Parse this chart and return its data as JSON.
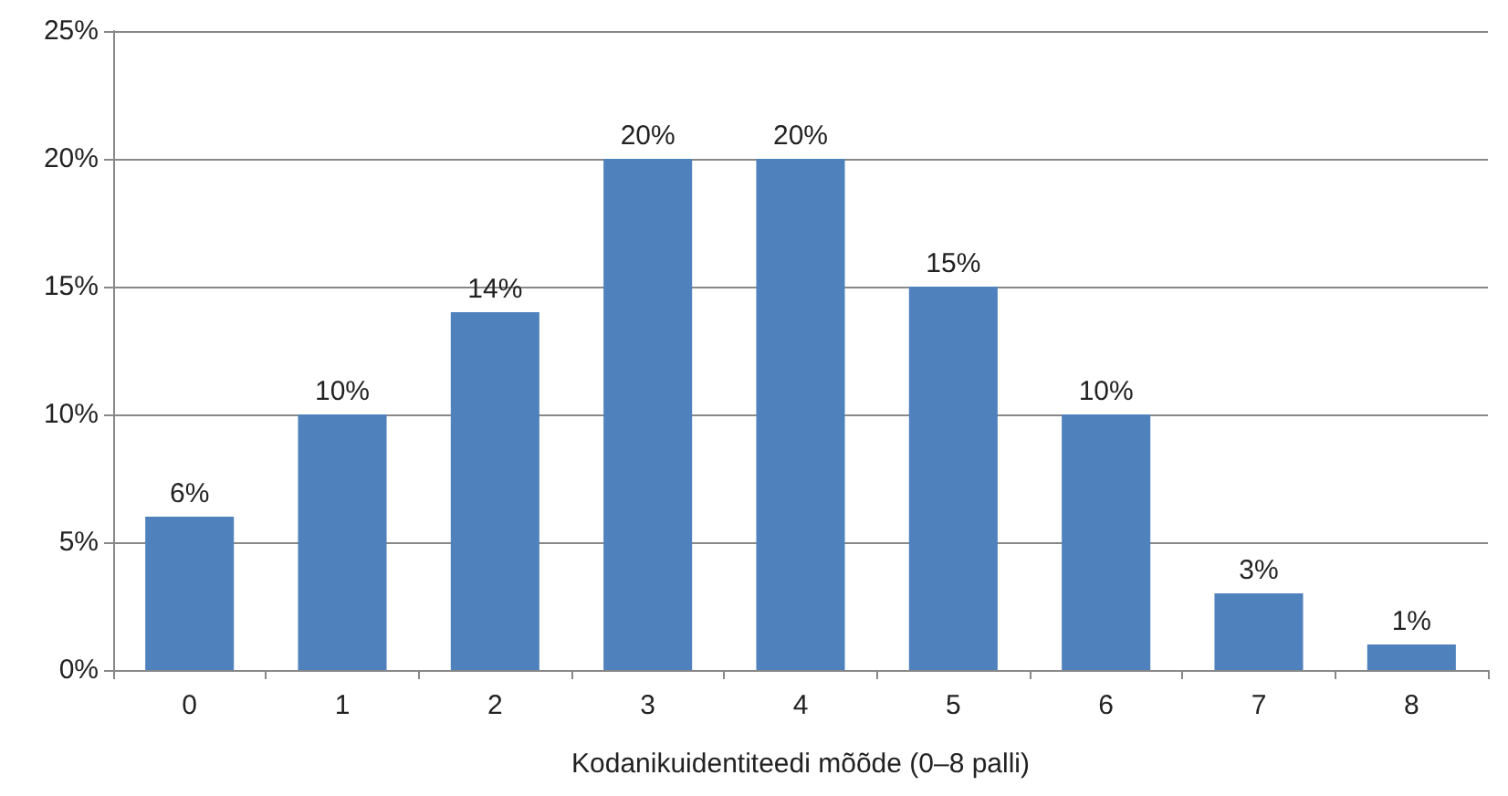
{
  "chart_data": {
    "type": "bar",
    "xlabel": "Kodanikuidentiteedi mõõde (0–8 palli)",
    "categories": [
      "0",
      "1",
      "2",
      "3",
      "4",
      "5",
      "6",
      "7",
      "8"
    ],
    "values": [
      6,
      10,
      14,
      20,
      20,
      15,
      10,
      3,
      1
    ],
    "value_labels": [
      "6%",
      "10%",
      "14%",
      "20%",
      "20%",
      "15%",
      "10%",
      "3%",
      "1%"
    ],
    "color": "#4f81bd",
    "ylim": [
      0,
      25
    ],
    "yticks": [
      {
        "value": 0,
        "label": "0%"
      },
      {
        "value": 5,
        "label": "5%"
      },
      {
        "value": 10,
        "label": "10%"
      },
      {
        "value": 15,
        "label": "15%"
      },
      {
        "value": 20,
        "label": "20%"
      },
      {
        "value": 25,
        "label": "25%"
      }
    ],
    "grid": "y"
  }
}
